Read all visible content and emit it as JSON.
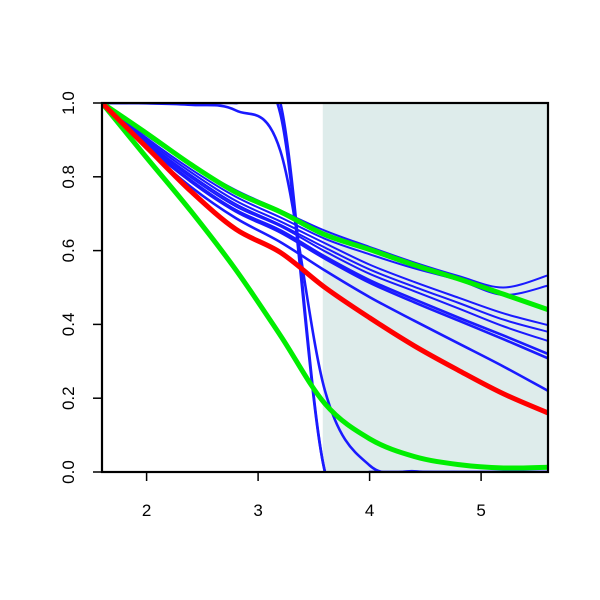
{
  "chart_data": {
    "type": "line",
    "title": "",
    "xlabel": "",
    "ylabel": "",
    "xlim": [
      1.6,
      5.6
    ],
    "ylim": [
      0.0,
      1.0
    ],
    "x_ticks": [
      2,
      3,
      4,
      5
    ],
    "x_tick_labels": [
      "2",
      "3",
      "4",
      "5"
    ],
    "y_ticks": [
      0.0,
      0.2,
      0.4,
      0.6,
      0.8,
      1.0
    ],
    "y_tick_labels": [
      "0.0",
      "0.2",
      "0.4",
      "0.6",
      "0.8",
      "1.0"
    ],
    "grid": false,
    "legend": "none",
    "shaded_region": {
      "x_from": 3.58,
      "x_to": 5.6,
      "color": "#deeceb"
    },
    "x": [
      1.6,
      2.0,
      2.4,
      2.8,
      3.2,
      3.6,
      4.0,
      4.4,
      4.8,
      5.2,
      5.6
    ],
    "series": [
      {
        "color": "#1a1aff",
        "width": "thin",
        "values": [
          1.0,
          0.912,
          0.832,
          0.764,
          0.709,
          0.654,
          0.61,
          0.568,
          0.531,
          0.5,
          0.533
        ]
      },
      {
        "color": "#1a1aff",
        "width": "thin",
        "values": [
          1.0,
          0.905,
          0.82,
          0.746,
          0.69,
          0.632,
          0.59,
          0.552,
          0.52,
          0.48,
          0.505
        ]
      },
      {
        "color": "#1a1aff",
        "width": "thin",
        "values": [
          1.0,
          0.9,
          0.812,
          0.735,
          0.679,
          0.62,
          0.562,
          0.515,
          0.472,
          0.43,
          0.398
        ]
      },
      {
        "color": "#1a1aff",
        "width": "thin",
        "values": [
          1.0,
          0.895,
          0.804,
          0.726,
          0.67,
          0.608,
          0.549,
          0.502,
          0.458,
          0.413,
          0.38
        ]
      },
      {
        "color": "#1a1aff",
        "width": "thin",
        "values": [
          1.0,
          0.891,
          0.798,
          0.72,
          0.666,
          0.598,
          0.537,
          0.49,
          0.443,
          0.395,
          0.355
        ]
      },
      {
        "color": "#1a1aff",
        "width": "medium",
        "values": [
          1.0,
          0.886,
          0.79,
          0.71,
          0.655,
          0.584,
          0.52,
          0.468,
          0.418,
          0.37,
          0.32
        ]
      },
      {
        "color": "#1a1aff",
        "width": "medium",
        "values": [
          1.0,
          0.884,
          0.786,
          0.706,
          0.649,
          0.578,
          0.513,
          0.46,
          0.41,
          0.36,
          0.308
        ]
      },
      {
        "color": "#1a1aff",
        "width": "medium",
        "values": [
          1.0,
          0.876,
          0.772,
          0.688,
          0.623,
          0.546,
          0.474,
          0.41,
          0.348,
          0.286,
          0.22
        ]
      },
      {
        "color": "#1a1aff",
        "width": "medium",
        "values": [
          1.0,
          0.999,
          0.995,
          0.98,
          0.87,
          0.22,
          0.018,
          0.002,
          0.0,
          0.0,
          0.0
        ]
      },
      {
        "color": "#1a1aff",
        "width": "medium",
        "values": [
          1.0,
          1.0,
          1.0,
          1.0,
          1.0,
          0.0,
          0.0,
          0.0,
          0.0,
          0.0,
          0.0
        ]
      },
      {
        "color": "#1a1aff",
        "width": "medium",
        "values": [
          1.0,
          1.0,
          1.0,
          1.0,
          0.97,
          0.0,
          0.0,
          0.0,
          0.0,
          0.0,
          0.0
        ]
      },
      {
        "color": "#00ee00",
        "width": "thick",
        "values": [
          1.0,
          0.918,
          0.833,
          0.758,
          0.705,
          0.643,
          0.603,
          0.561,
          0.523,
          0.482,
          0.44
        ]
      },
      {
        "color": "#00ee00",
        "width": "thick",
        "values": [
          1.0,
          0.852,
          0.706,
          0.548,
          0.37,
          0.185,
          0.09,
          0.042,
          0.02,
          0.011,
          0.013
        ]
      },
      {
        "color": "#ff0000",
        "width": "thick",
        "values": [
          1.0,
          0.88,
          0.76,
          0.658,
          0.595,
          0.5,
          0.418,
          0.342,
          0.275,
          0.212,
          0.16
        ]
      }
    ]
  }
}
